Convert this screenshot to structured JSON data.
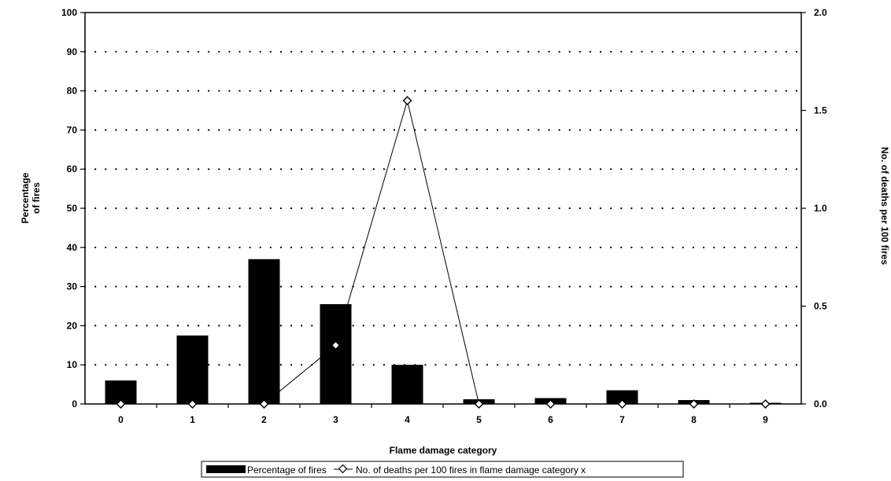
{
  "chart_data": {
    "type": "bar",
    "categories": [
      "0",
      "1",
      "2",
      "3",
      "4",
      "5",
      "6",
      "7",
      "8",
      "9"
    ],
    "series": [
      {
        "name": "Percentage of fires",
        "type": "bar",
        "axis": "left",
        "values": [
          6,
          17.5,
          37,
          25.5,
          10,
          1.2,
          1.5,
          3.5,
          1,
          0.3
        ]
      },
      {
        "name": "No. of deaths per 100 fires in flame damage category x",
        "type": "line",
        "axis": "right",
        "values": [
          0,
          0,
          0,
          0.3,
          1.55,
          0,
          0,
          0,
          0,
          0
        ]
      }
    ],
    "xlabel": "Flame damage category",
    "ylabel_left_lines": [
      "Percentage",
      "of fires"
    ],
    "ylabel_right": "No. of deaths per 100 fires",
    "ylim_left": [
      0,
      100
    ],
    "ylim_right": [
      0,
      2.0
    ],
    "yticks_left": [
      "0",
      "10",
      "20",
      "30",
      "40",
      "50",
      "60",
      "70",
      "80",
      "90",
      "100"
    ],
    "yticks_right": [
      "0.0",
      "0.5",
      "1.0",
      "1.5",
      "2.0"
    ],
    "grid": true,
    "legend_position": "bottom"
  }
}
